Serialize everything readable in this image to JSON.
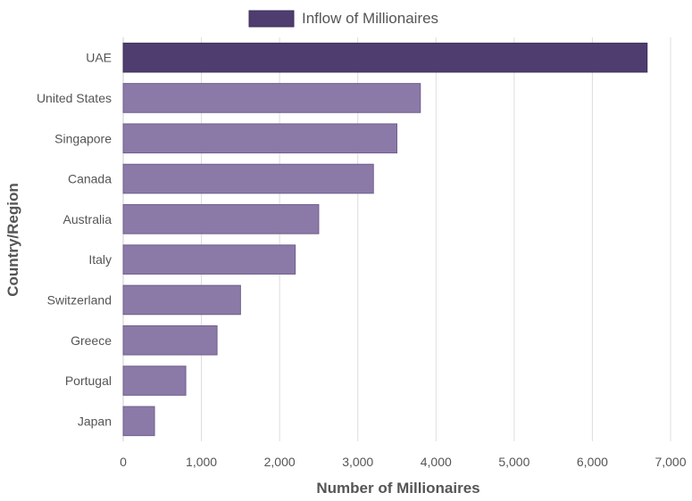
{
  "chart_data": {
    "type": "bar",
    "orientation": "horizontal",
    "categories": [
      "UAE",
      "United States",
      "Singapore",
      "Canada",
      "Australia",
      "Italy",
      "Switzerland",
      "Greece",
      "Portugal",
      "Japan"
    ],
    "series": [
      {
        "name": "Inflow of Millionaires",
        "values": [
          6700,
          3800,
          3500,
          3200,
          2500,
          2200,
          1500,
          1200,
          800,
          400
        ]
      }
    ],
    "xlabel": "Number of Millionaires",
    "ylabel": "Country/Region",
    "xlim": [
      0,
      7000
    ],
    "xticks": [
      0,
      1000,
      2000,
      3000,
      4000,
      5000,
      6000,
      7000
    ],
    "xtick_labels": [
      "0",
      "1,000",
      "2,000",
      "3,000",
      "4,000",
      "5,000",
      "6,000",
      "7,000"
    ],
    "grid": "vertical",
    "legend_position": "top-center",
    "highlighted_category": "UAE",
    "colors": {
      "highlight_fill": "#4e3d6e",
      "highlight_stroke": "#3e2f5a",
      "bar_fill": "#8b7aa8",
      "bar_stroke": "#6f5f8c",
      "legend_swatch": "#4e3d6e",
      "grid": "#dddddd",
      "text": "#555555"
    }
  }
}
